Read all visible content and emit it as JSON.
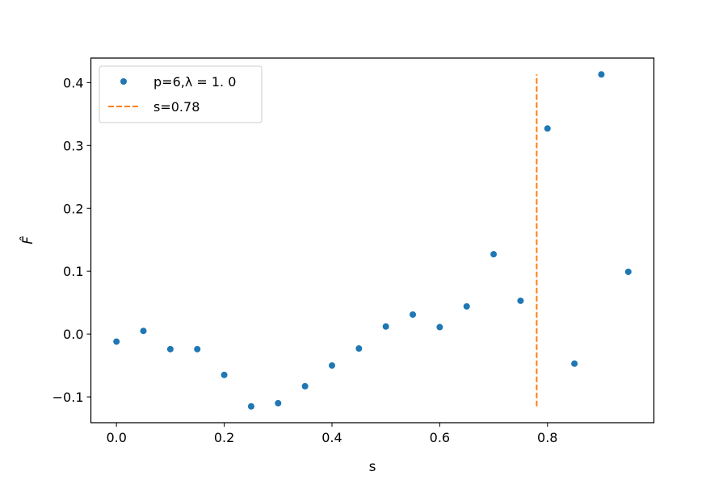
{
  "chart_data": {
    "type": "scatter",
    "xlabel": "s",
    "ylabel": "F̂",
    "xlim": [
      -0.0475,
      0.9975
    ],
    "ylim": [
      -0.141,
      0.439
    ],
    "xticks": [
      0.0,
      0.2,
      0.4,
      0.6,
      0.8
    ],
    "xtick_labels": [
      "0.0",
      "0.2",
      "0.4",
      "0.6",
      "0.8"
    ],
    "yticks": [
      -0.1,
      0.0,
      0.1,
      0.2,
      0.3,
      0.4
    ],
    "ytick_labels": [
      "−0.1",
      "0.0",
      "0.1",
      "0.2",
      "0.3",
      "0.4"
    ],
    "grid": false,
    "legend_position": "upper-left",
    "series": [
      {
        "name": "p=6,λ = 1. 0",
        "mark": "point",
        "color": "#1f77b4",
        "x": [
          0.0,
          0.05,
          0.1,
          0.15,
          0.2,
          0.25,
          0.3,
          0.35,
          0.4,
          0.45,
          0.5,
          0.55,
          0.6,
          0.65,
          0.7,
          0.75,
          0.8,
          0.85,
          0.9,
          0.95
        ],
        "y": [
          -0.012,
          0.005,
          -0.024,
          -0.024,
          -0.065,
          -0.115,
          -0.11,
          -0.083,
          -0.05,
          -0.023,
          0.012,
          0.031,
          0.011,
          0.044,
          0.127,
          0.053,
          0.327,
          -0.047,
          0.413,
          0.099
        ]
      },
      {
        "name": "s=0.78",
        "mark": "dashed-vline",
        "color": "#ff7f0e",
        "x": 0.78,
        "y_range": [
          -0.115,
          0.413
        ]
      }
    ]
  },
  "legend": {
    "point_label": "p=6,λ = 1. 0",
    "line_label": "s=0.78"
  }
}
